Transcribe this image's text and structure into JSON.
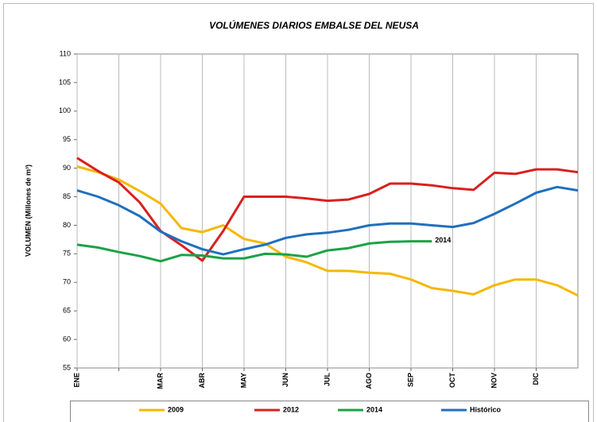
{
  "chart_data": {
    "type": "line",
    "title": "VOLÚMENES DIARIOS EMBALSE DEL NEUSA",
    "y_label": "VOLUMEN (Millones de m³)",
    "categories": [
      "ENE",
      null,
      null,
      null,
      "MAR",
      null,
      "ABR",
      null,
      "MAY",
      null,
      "JUN",
      null,
      "JUL",
      null,
      "AGO",
      null,
      "SEP",
      null,
      "OCT",
      null,
      "NOV",
      null,
      "DIC",
      null,
      null
    ],
    "series": [
      {
        "name": "2009",
        "color": "#f5b800",
        "values": [
          90.3,
          89.3,
          88.0,
          86.0,
          83.8,
          79.5,
          78.8,
          80.0,
          77.6,
          76.8,
          74.5,
          73.5,
          72.0,
          72.0,
          71.7,
          71.5,
          70.5,
          69.0,
          68.5,
          67.9,
          69.5,
          70.5,
          70.5,
          69.5,
          67.7
        ]
      },
      {
        "name": "2012",
        "color": "#d9201f",
        "values": [
          91.8,
          89.5,
          87.5,
          84.0,
          79.0,
          76.5,
          73.8,
          79.0,
          85.0,
          85.0,
          85.0,
          84.7,
          84.3,
          84.5,
          85.5,
          87.3,
          87.3,
          87.0,
          86.5,
          86.2,
          89.2,
          89.0,
          89.8,
          89.8,
          89.3
        ]
      },
      {
        "name": "2014",
        "color": "#1aa246",
        "values": [
          76.6,
          76.1,
          75.3,
          74.6,
          73.7,
          74.8,
          74.7,
          74.2,
          74.2,
          75.0,
          74.9,
          74.5,
          75.6,
          76.0,
          76.8,
          77.1,
          77.2,
          77.2,
          null,
          null,
          null,
          null,
          null,
          null,
          null
        ]
      },
      {
        "name": "Histórico",
        "color": "#1f6fbf",
        "values": [
          86.1,
          85.0,
          83.5,
          81.6,
          78.9,
          77.2,
          75.8,
          74.9,
          75.8,
          76.6,
          77.8,
          78.4,
          78.7,
          79.2,
          80.0,
          80.3,
          80.3,
          80.0,
          79.7,
          80.4,
          82.0,
          83.8,
          85.7,
          86.7,
          86.1
        ]
      }
    ],
    "annotations": [
      {
        "text": "2014",
        "series": 2
      }
    ],
    "ylim": [
      55,
      110
    ],
    "yticks": [
      55,
      60,
      65,
      70,
      75,
      80,
      85,
      90,
      95,
      100,
      105,
      110
    ],
    "legend": "bottom"
  }
}
